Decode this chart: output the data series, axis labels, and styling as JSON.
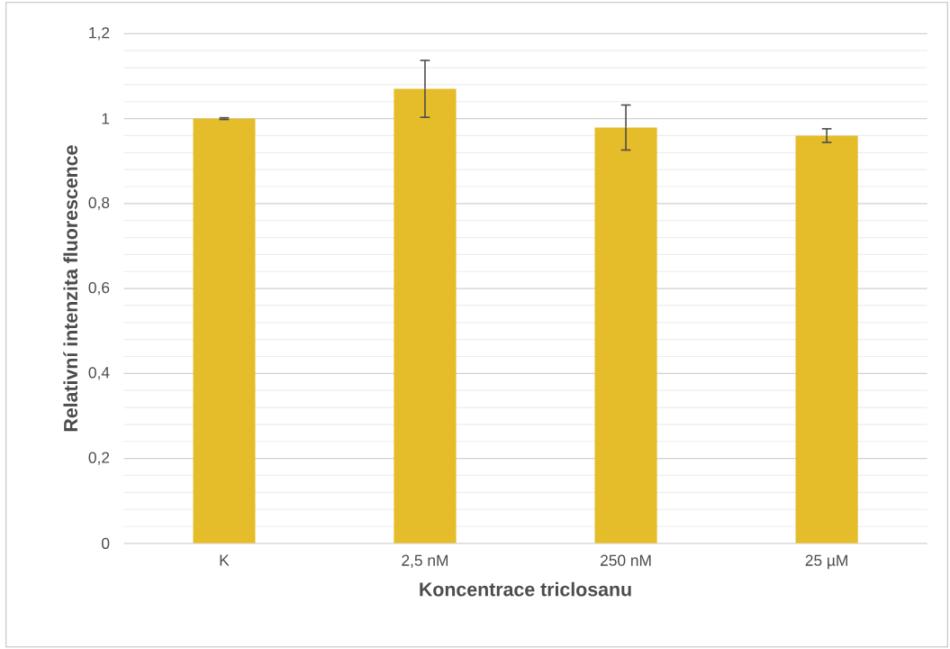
{
  "chart_data": {
    "type": "bar",
    "xlabel": "Koncentrace triclosanu",
    "ylabel": "Relativní intenzita fluorescence",
    "categories": [
      "K",
      "2,5 nM",
      "250 nM",
      "25 µM"
    ],
    "values": [
      1.0,
      1.07,
      0.979,
      0.96
    ],
    "errors": [
      0.002,
      0.067,
      0.053,
      0.016
    ],
    "color": "#e5bc29",
    "ylim": [
      0,
      1.2
    ],
    "yticks": [
      {
        "value": 0,
        "label": "0"
      },
      {
        "value": 0.04,
        "label": null
      },
      {
        "value": 0.08,
        "label": null
      },
      {
        "value": 0.12,
        "label": null
      },
      {
        "value": 0.16,
        "label": null
      },
      {
        "value": 0.2,
        "label": "0,2"
      },
      {
        "value": 0.24,
        "label": null
      },
      {
        "value": 0.28,
        "label": null
      },
      {
        "value": 0.32,
        "label": null
      },
      {
        "value": 0.36,
        "label": null
      },
      {
        "value": 0.4,
        "label": "0,4"
      },
      {
        "value": 0.44,
        "label": null
      },
      {
        "value": 0.48,
        "label": null
      },
      {
        "value": 0.52,
        "label": null
      },
      {
        "value": 0.56,
        "label": null
      },
      {
        "value": 0.6,
        "label": "0,6"
      },
      {
        "value": 0.64,
        "label": null
      },
      {
        "value": 0.68,
        "label": null
      },
      {
        "value": 0.72,
        "label": null
      },
      {
        "value": 0.76,
        "label": null
      },
      {
        "value": 0.8,
        "label": "0,8"
      },
      {
        "value": 0.84,
        "label": null
      },
      {
        "value": 0.88,
        "label": null
      },
      {
        "value": 0.92,
        "label": null
      },
      {
        "value": 0.96,
        "label": null
      },
      {
        "value": 1,
        "label": "1"
      },
      {
        "value": 1.04,
        "label": null
      },
      {
        "value": 1.08,
        "label": null
      },
      {
        "value": 1.12,
        "label": null
      },
      {
        "value": 1.16,
        "label": null
      },
      {
        "value": 1.2,
        "label": "1,2"
      }
    ],
    "grid": "y"
  }
}
